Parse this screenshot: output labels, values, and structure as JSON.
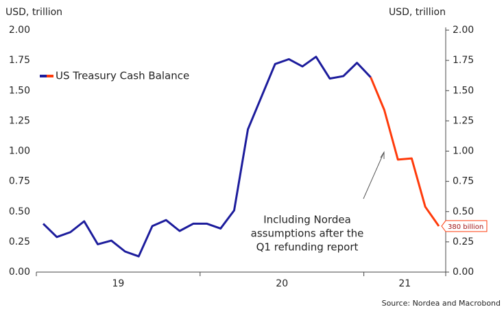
{
  "chart_data": {
    "type": "line",
    "ylabel": "USD, trillion",
    "y2label": "USD, trillion",
    "xlim": [
      2019,
      2021.5
    ],
    "xticks": [
      2019,
      2020,
      2021,
      2021.5
    ],
    "xlabels": [
      {
        "value": 2019.5,
        "label": "19"
      },
      {
        "value": 2020.5,
        "label": "20"
      },
      {
        "value": 2021.25,
        "label": "21"
      }
    ],
    "ylim": [
      0,
      2
    ],
    "yticks": [
      {
        "value": 0,
        "label": "0.00"
      },
      {
        "value": 0.25,
        "label": "0.25"
      },
      {
        "value": 0.5,
        "label": "0.50"
      },
      {
        "value": 0.75,
        "label": "0.75"
      },
      {
        "value": 1,
        "label": "1.00"
      },
      {
        "value": 1.25,
        "label": "1.25"
      },
      {
        "value": 1.5,
        "label": "1.50"
      },
      {
        "value": 1.75,
        "label": "1.75"
      },
      {
        "value": 2,
        "label": "2.00"
      }
    ],
    "y2lim": [
      0,
      2
    ],
    "y2ticks": [
      {
        "value": 0,
        "label": "0.00"
      },
      {
        "value": 0.25,
        "label": "0.25"
      },
      {
        "value": 0.5,
        "label": "0.50"
      },
      {
        "value": 0.75,
        "label": "0.75"
      },
      {
        "value": 1,
        "label": "1.00"
      },
      {
        "value": 1.25,
        "label": "1.25"
      },
      {
        "value": 1.5,
        "label": "1.50"
      },
      {
        "value": 1.75,
        "label": "1.75"
      },
      {
        "value": 2,
        "label": "2.00"
      }
    ],
    "series": [
      {
        "name": "US Treasury Cash Balance",
        "color": "#1c1c9c",
        "x": [
          2019.042,
          2019.125,
          2019.208,
          2019.292,
          2019.375,
          2019.458,
          2019.542,
          2019.625,
          2019.708,
          2019.792,
          2019.875,
          2019.958,
          2020.042,
          2020.125,
          2020.208,
          2020.292,
          2020.375,
          2020.458,
          2020.542,
          2020.625,
          2020.708,
          2020.792,
          2020.875,
          2020.958,
          2021.042
        ],
        "values": [
          0.4,
          0.29,
          0.33,
          0.42,
          0.23,
          0.26,
          0.17,
          0.13,
          0.38,
          0.43,
          0.34,
          0.4,
          0.4,
          0.36,
          0.51,
          1.18,
          1.45,
          1.72,
          1.76,
          1.7,
          1.78,
          1.6,
          1.62,
          1.73,
          1.61
        ]
      },
      {
        "color": "#ff3a0a",
        "x": [
          2021.042,
          2021.125,
          2021.208,
          2021.292,
          2021.375,
          2021.458
        ],
        "values": [
          1.61,
          1.34,
          0.93,
          0.94,
          0.54,
          0.38
        ],
        "value_labels": [
          null,
          null,
          null,
          null,
          null,
          "380 billion"
        ]
      }
    ],
    "annotation": [
      "Including Nordea",
      "assumptions after the",
      "Q1 refunding report"
    ],
    "source": "Source: Nordea and Macrobond"
  }
}
